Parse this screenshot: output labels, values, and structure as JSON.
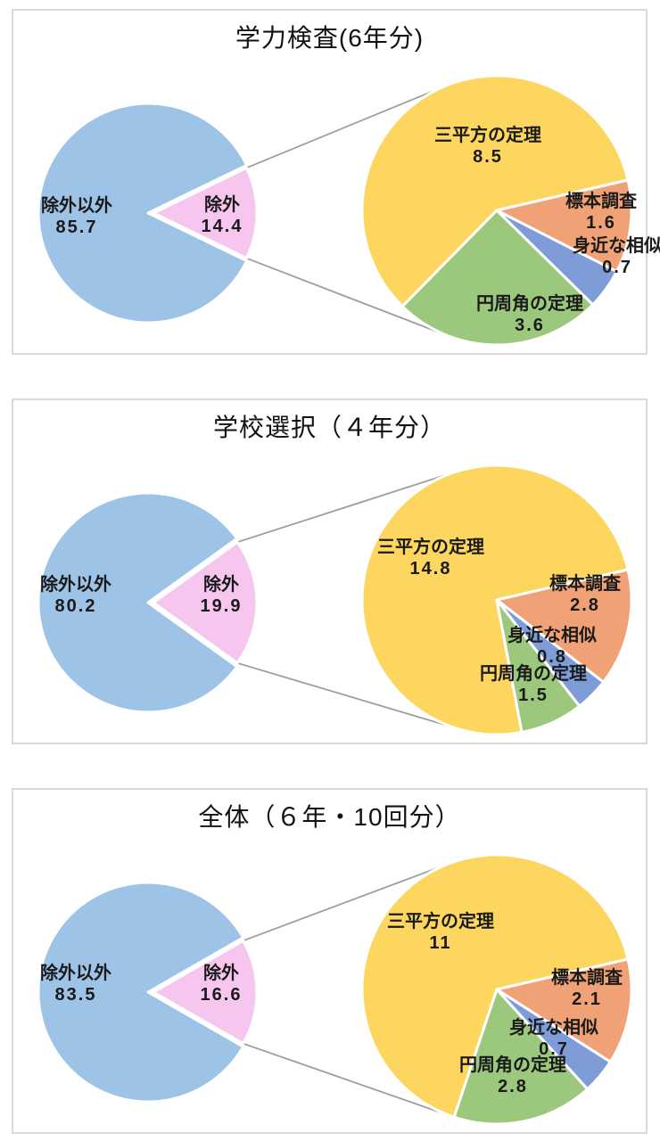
{
  "colors": {
    "main_primary": "#9DC3E6",
    "main_secondary": "#F6C6EF",
    "detail_palette": [
      "#FDD65F",
      "#F0A276",
      "#7E9DD8",
      "#9BC87D"
    ],
    "connector_line": "#9E9E9E",
    "slice_border": "#FFFFFF",
    "panel_border": "#D9D9D9",
    "label_text": "#1A1A1A"
  },
  "chart_data": [
    {
      "type": "pie",
      "variant": "pie-of-pie",
      "title": "学力検査(6年分)",
      "main_slices": [
        {
          "label": "除外以外",
          "value": 85.7
        },
        {
          "label": "除外",
          "value": 14.4
        }
      ],
      "detail_slices": [
        {
          "label": "三平方の定理",
          "value": 8.5
        },
        {
          "label": "標本調査",
          "value": 1.6
        },
        {
          "label": "身近な相似",
          "value": 0.7
        },
        {
          "label": "円周角の定理",
          "value": 3.6
        }
      ]
    },
    {
      "type": "pie",
      "variant": "pie-of-pie",
      "title": "学校選択（４年分）",
      "main_slices": [
        {
          "label": "除外以外",
          "value": 80.2
        },
        {
          "label": "除外",
          "value": 19.9
        }
      ],
      "detail_slices": [
        {
          "label": "三平方の定理",
          "value": 14.8
        },
        {
          "label": "標本調査",
          "value": 2.8
        },
        {
          "label": "身近な相似",
          "value": 0.8
        },
        {
          "label": "円周角の定理",
          "value": 1.5
        }
      ]
    },
    {
      "type": "pie",
      "variant": "pie-of-pie",
      "title": "全体（６年・10回分）",
      "main_slices": [
        {
          "label": "除外以外",
          "value": 83.5
        },
        {
          "label": "除外",
          "value": 16.6
        }
      ],
      "detail_slices": [
        {
          "label": "三平方の定理",
          "value": 11
        },
        {
          "label": "標本調査",
          "value": 2.1
        },
        {
          "label": "身近な相似",
          "value": 0.7
        },
        {
          "label": "円周角の定理",
          "value": 2.8
        }
      ]
    }
  ]
}
